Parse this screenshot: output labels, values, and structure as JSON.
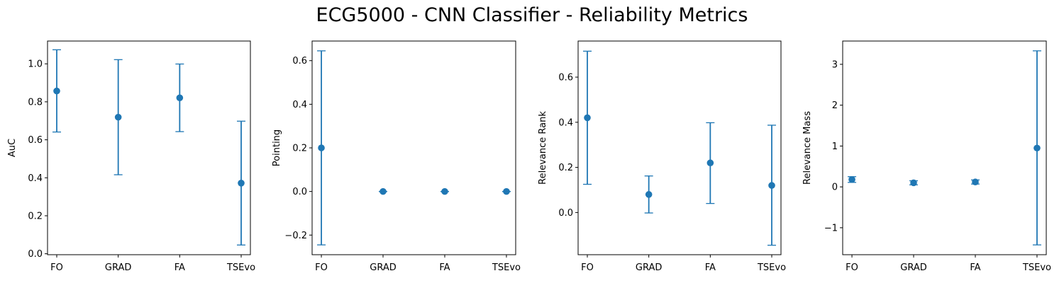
{
  "figure": {
    "title": "ECG5000 - CNN Classifier - Reliability Metrics"
  },
  "colors": {
    "series": "#1f77b4",
    "axes": "#000000"
  },
  "chart_data": [
    {
      "type": "scatter",
      "categories": [
        "FO",
        "GRAD",
        "FA",
        "TSEvo"
      ],
      "values": [
        0.857,
        0.719,
        0.821,
        0.372
      ],
      "err_low": [
        0.641,
        0.416,
        0.643,
        0.046
      ],
      "err_high": [
        1.074,
        1.022,
        0.999,
        0.698
      ],
      "ylabel": "AuC",
      "ylim": [
        -0.005,
        1.12
      ],
      "yticks": [
        0.0,
        0.2,
        0.4,
        0.6,
        0.8,
        1.0
      ],
      "ytick_labels": [
        "0.0",
        "0.2",
        "0.4",
        "0.6",
        "0.8",
        "1.0"
      ]
    },
    {
      "type": "scatter",
      "categories": [
        "FO",
        "GRAD",
        "FA",
        "TSEvo"
      ],
      "values": [
        0.2,
        0.0,
        0.0,
        0.0
      ],
      "err_low": [
        -0.245,
        0.0,
        0.0,
        0.0
      ],
      "err_high": [
        0.645,
        0.0,
        0.0,
        0.0
      ],
      "ylabel": "Pointing",
      "ylim": [
        -0.29,
        0.69
      ],
      "yticks": [
        -0.2,
        0.0,
        0.2,
        0.4,
        0.6
      ],
      "ytick_labels": [
        "−0.2",
        "0.0",
        "0.2",
        "0.4",
        "0.6"
      ]
    },
    {
      "type": "scatter",
      "categories": [
        "FO",
        "GRAD",
        "FA",
        "TSEvo"
      ],
      "values": [
        0.42,
        0.08,
        0.22,
        0.12
      ],
      "err_low": [
        0.125,
        -0.002,
        0.04,
        -0.145
      ],
      "err_high": [
        0.715,
        0.162,
        0.398,
        0.387
      ],
      "ylabel": "Relevance Rank",
      "ylim": [
        -0.187,
        0.76
      ],
      "yticks": [
        0.0,
        0.2,
        0.4,
        0.6
      ],
      "ytick_labels": [
        "0.0",
        "0.2",
        "0.4",
        "0.6"
      ]
    },
    {
      "type": "scatter",
      "categories": [
        "FO",
        "GRAD",
        "FA",
        "TSEvo"
      ],
      "values": [
        0.18,
        0.1,
        0.12,
        0.95
      ],
      "err_low": [
        0.11,
        0.05,
        0.07,
        -1.42
      ],
      "err_high": [
        0.25,
        0.15,
        0.17,
        3.33
      ],
      "ylabel": "Relevance Mass",
      "ylim": [
        -1.66,
        3.57
      ],
      "yticks": [
        -1,
        0,
        1,
        2,
        3
      ],
      "ytick_labels": [
        "−1",
        "0",
        "1",
        "2",
        "3"
      ]
    }
  ]
}
